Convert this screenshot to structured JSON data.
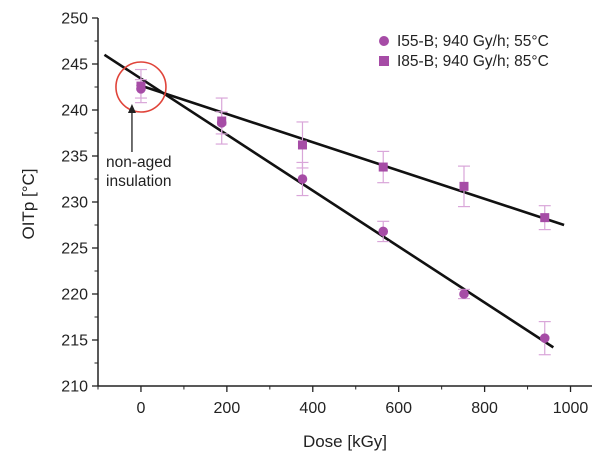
{
  "chart_data": {
    "type": "scatter",
    "xlabel": "Dose [kGy]",
    "ylabel": "OITp [°C]",
    "xlim": [
      -100,
      1050
    ],
    "ylim": [
      210,
      250
    ],
    "x_ticks": [
      0,
      200,
      400,
      600,
      800,
      1000
    ],
    "y_ticks": [
      210,
      215,
      220,
      225,
      230,
      235,
      240,
      245,
      250
    ],
    "x_tick_labels": [
      "0",
      "200",
      "400",
      "600",
      "800",
      "1000"
    ],
    "y_tick_labels": [
      "210",
      "215",
      "220",
      "225",
      "230",
      "235",
      "240",
      "245",
      "250"
    ],
    "grid": false,
    "legend_position": "top-right",
    "series": [
      {
        "name": "I55-B; 940 Gy/h; 55°C",
        "marker": "circle",
        "color": "#a64ca6",
        "x": [
          0,
          188,
          376,
          564,
          752,
          940
        ],
        "y": [
          242.3,
          238.6,
          232.5,
          226.8,
          220.0,
          215.2
        ],
        "err": [
          1.0,
          1.2,
          1.8,
          1.1,
          0.5,
          1.8
        ],
        "fit": {
          "x": [
            -85,
            960
          ],
          "y": [
            246.0,
            214.2
          ]
        }
      },
      {
        "name": "I85-B; 940 Gy/h; 85°C",
        "marker": "square",
        "color": "#a64ca6",
        "x": [
          0,
          188,
          376,
          564,
          752,
          940
        ],
        "y": [
          242.6,
          238.8,
          236.2,
          233.8,
          231.7,
          228.3
        ],
        "err": [
          1.8,
          2.5,
          2.5,
          1.7,
          2.2,
          1.3
        ],
        "fit": {
          "x": [
            -10,
            985
          ],
          "y": [
            242.8,
            227.5
          ]
        }
      }
    ],
    "annotations": [
      {
        "text_lines": [
          "non-aged",
          "insulation"
        ],
        "target": {
          "x": 0,
          "y": 242.5
        },
        "marker": "circle-outline",
        "color": "#e0443a"
      }
    ]
  }
}
